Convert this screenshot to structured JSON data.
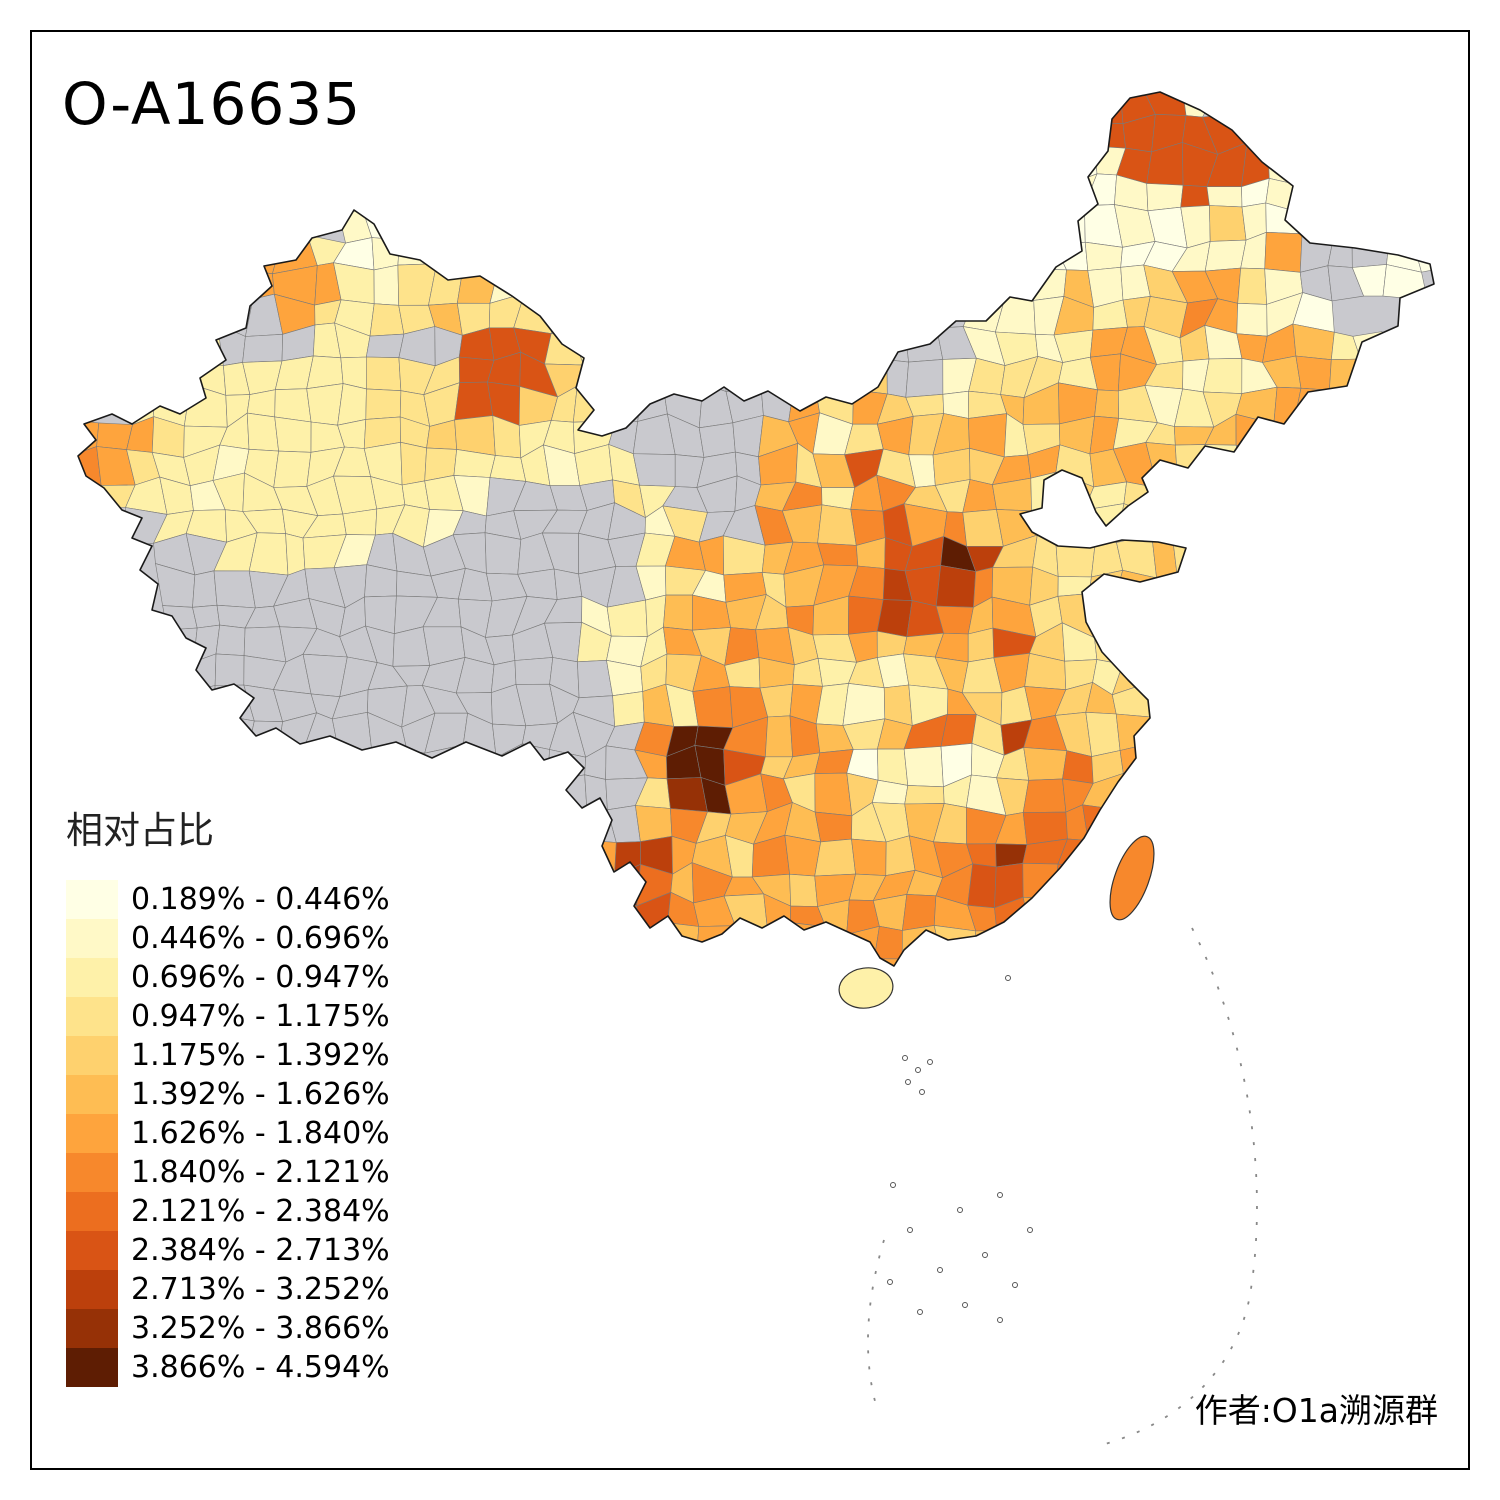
{
  "title": "O-A16635",
  "author": "作者:O1a溯源群",
  "legend": {
    "title": "相对占比",
    "items": [
      "0.189% - 0.446%",
      "0.446% - 0.696%",
      "0.696% - 0.947%",
      "0.947% - 1.175%",
      "1.175% - 1.392%",
      "1.392% - 1.626%",
      "1.626% - 1.840%",
      "1.840% - 2.121%",
      "2.121% - 2.384%",
      "2.384% - 2.713%",
      "2.713% - 3.252%",
      "3.252% - 3.866%",
      "3.866% - 4.594%"
    ]
  },
  "map": {
    "no_data_color": "#C9C9CE",
    "border_color": "#7A7A7A",
    "outline_color": "#1A1A1A",
    "background": "#FFFFFF",
    "palette": [
      "#FFFFE5",
      "#FFF9C7",
      "#FEF1A9",
      "#FEE38B",
      "#FED16E",
      "#FEBD53",
      "#FEA43D",
      "#F7882C",
      "#EC6E1F",
      "#D95415",
      "#BC400C",
      "#963106",
      "#5E1D03"
    ],
    "islands": {
      "taiwan_color": "#F7882C",
      "hainan_color": "#FEF1A9"
    },
    "grid": [
      "                                  AAA2",
      "                                 2AAAAAA2",
      "                                 12AAAAA21",
      "                                12122A21211",
      "         2123                  1211212521211",
      "      77312234                 2112112227...11",
      "      777324462                1262257742..11",
      "     ..74344644433.......42...222635587221",
      "    3...33...AAA43......742...23237735277632",
      "   3333333444AAA54......575..244437742326763",
      "  33333333444AA544......7475424667642346774",
      "777433333344554333.....6724756734673466763",
      "8743323333344333233....746A425577467643",
      " 4332333333332....43...6837854763534463",
      "  .3333333332......24..8658A78565434463",
      "   ..33332.........37746786AADB54444643",
      "   ................24274678BAB86535646",
      "   ..............2336765869BA86745345",
      "  ...............32375875475675A53443",
      "  ................24574643424647543543",
      "   ...............36388573253754756454",
      "    ...............8DD868646994B854664",
      "      .............7DDA568132124695743",
      "        ...........4CD784752432588685",
      "                 ..685676844658798964",
      "                 7BB76487575789C9976",
      "                 8B96876576768AA897",
      "                  9A87578686878976",
      "                   867677678656",
      "                          67"
    ]
  }
}
